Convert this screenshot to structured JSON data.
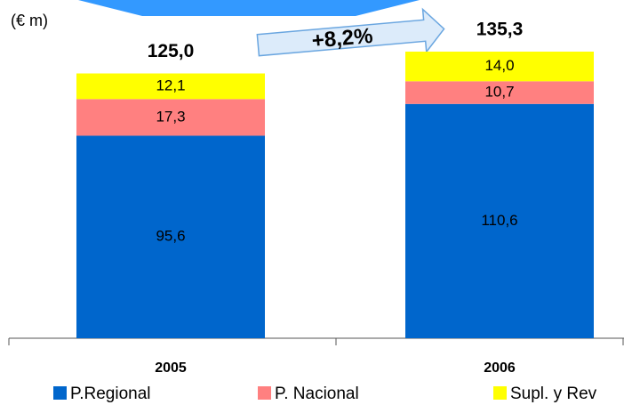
{
  "chart_data": {
    "type": "stacked_bar",
    "unit_label": "(€ m)",
    "annotation": "+8,2%",
    "categories": [
      "2005",
      "2006"
    ],
    "series": [
      {
        "name": "P.Regional",
        "color": "#0066cc",
        "values": [
          95.6,
          110.6
        ],
        "value_labels": [
          "95,6",
          "110,6"
        ]
      },
      {
        "name": "P. Nacional",
        "color": "#ff8080",
        "values": [
          17.3,
          10.7
        ],
        "value_labels": [
          "17,3",
          "10,7"
        ]
      },
      {
        "name": "Supl. y Rev",
        "color": "#ffff00",
        "values": [
          12.1,
          14.0
        ],
        "value_labels": [
          "12,1",
          "14,0"
        ]
      }
    ],
    "totals": [
      125.0,
      135.3
    ],
    "total_labels": [
      "125,0",
      "135,3"
    ]
  }
}
